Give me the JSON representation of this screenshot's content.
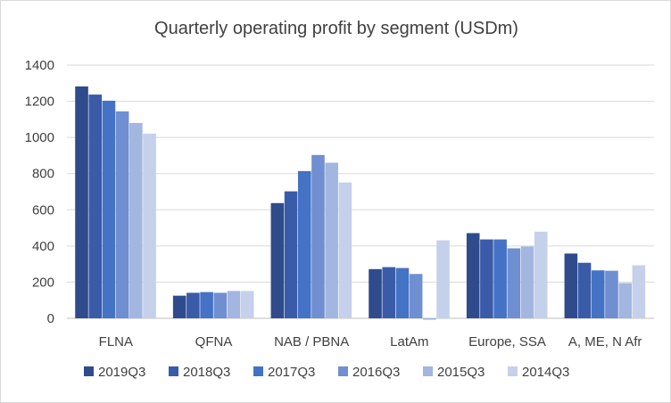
{
  "chart_data": {
    "type": "bar",
    "title": "Quarterly operating profit by segment (USDm)",
    "xlabel": "",
    "ylabel": "",
    "categories": [
      "FLNA",
      "QFNA",
      "NAB / PBNA",
      "LatAm",
      "Europe, SSA",
      "A, ME, N Afr"
    ],
    "ylim": [
      0,
      1400
    ],
    "yticks": [
      0,
      200,
      400,
      600,
      800,
      1000,
      1200,
      1400
    ],
    "grid": true,
    "legend_position": "bottom",
    "series": [
      {
        "name": "2019Q3",
        "color": "#2f4b8c",
        "values": [
          1282,
          125,
          637,
          272,
          471,
          358
        ]
      },
      {
        "name": "2018Q3",
        "color": "#3a5ba8",
        "values": [
          1237,
          141,
          702,
          283,
          436,
          307
        ]
      },
      {
        "name": "2017Q3",
        "color": "#4472c4",
        "values": [
          1203,
          145,
          814,
          278,
          436,
          265
        ]
      },
      {
        "name": "2016Q3",
        "color": "#6f8fd1",
        "values": [
          1144,
          141,
          903,
          245,
          387,
          263
        ]
      },
      {
        "name": "2015Q3",
        "color": "#a3b6e0",
        "values": [
          1080,
          151,
          860,
          -8,
          397,
          195
        ]
      },
      {
        "name": "2014Q3",
        "color": "#c5d0ea",
        "values": [
          1021,
          151,
          751,
          431,
          479,
          293
        ]
      }
    ]
  }
}
